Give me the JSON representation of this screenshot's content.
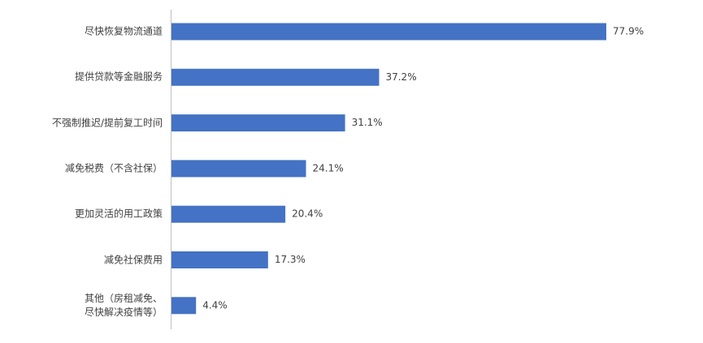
{
  "chart_data": {
    "type": "bar",
    "orientation": "horizontal",
    "categories": [
      "尽快恢复物流通道",
      "提供贷款等金融服务",
      "不强制推迟/提前复工时间",
      "减免税费（不含社保）",
      "更加灵活的用工政策",
      "减免社保费用",
      "其他（房租减免、\n尽快解决疫情等）"
    ],
    "values": [
      77.9,
      37.2,
      31.1,
      24.1,
      20.4,
      17.3,
      4.4
    ],
    "value_labels": [
      "77.9%",
      "37.2%",
      "31.1%",
      "24.1%",
      "20.4%",
      "17.3%",
      "4.4%"
    ],
    "color": "#4472c4"
  }
}
